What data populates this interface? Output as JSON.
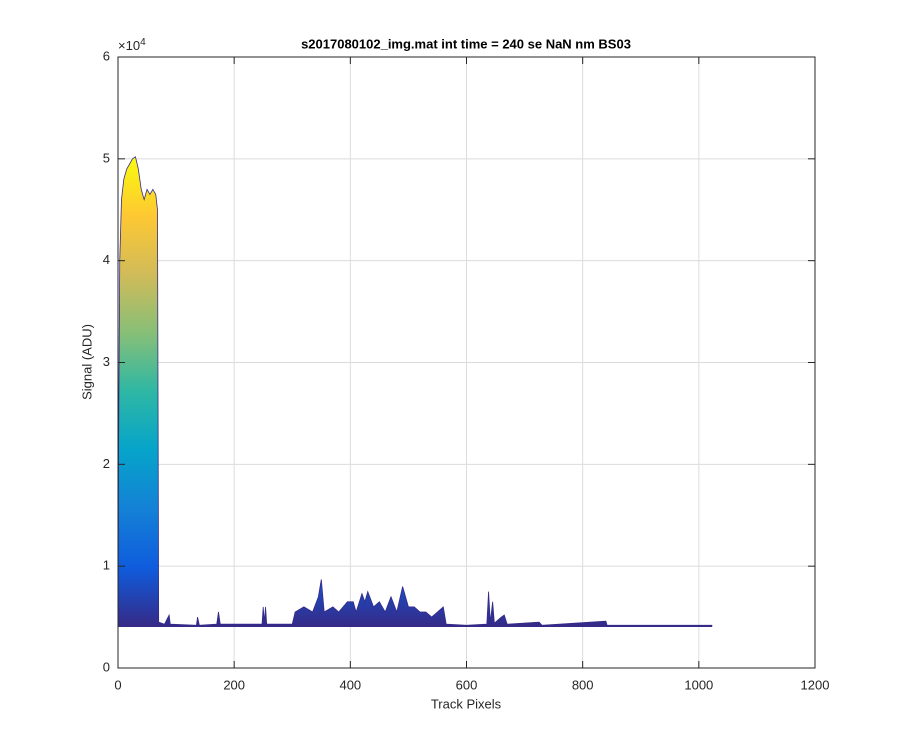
{
  "chart_data": {
    "type": "area",
    "title": "s2017080102_img.mat int time = 240 se  NaN nm BS03",
    "x_label": "Track Pixels",
    "y_label": "Signal (ADU)",
    "y_multiplier": {
      "base": "×10",
      "exponent": "4"
    },
    "x": [
      0,
      1,
      3,
      6,
      10,
      15,
      20,
      25,
      30,
      35,
      40,
      45,
      50,
      55,
      60,
      65,
      68,
      70,
      80,
      88,
      90,
      135,
      137,
      140,
      170,
      173,
      176,
      248,
      250,
      252,
      254,
      256,
      300,
      305,
      320,
      335,
      345,
      350,
      355,
      370,
      380,
      395,
      405,
      410,
      420,
      425,
      430,
      440,
      450,
      460,
      470,
      480,
      490,
      500,
      510,
      520,
      530,
      540,
      550,
      560,
      565,
      600,
      635,
      638,
      641,
      645,
      648,
      660,
      665,
      670,
      725,
      730,
      840,
      842,
      1023
    ],
    "values": [
      4200,
      22000,
      40000,
      46000,
      48000,
      49000,
      49500,
      50000,
      50200,
      49000,
      47000,
      46000,
      47000,
      46500,
      47000,
      46500,
      45000,
      4500,
      4300,
      5200,
      4300,
      4200,
      5000,
      4200,
      4300,
      5500,
      4300,
      4300,
      6000,
      4500,
      6000,
      4300,
      4300,
      5500,
      6000,
      5500,
      7000,
      8700,
      5500,
      6000,
      5500,
      6500,
      6500,
      5500,
      7300,
      6500,
      7500,
      6000,
      6500,
      5500,
      7000,
      5500,
      8000,
      6000,
      6000,
      5500,
      5500,
      5000,
      5500,
      6000,
      4300,
      4200,
      4300,
      7500,
      4500,
      6500,
      4400,
      5000,
      5200,
      4300,
      4500,
      4200,
      4600,
      4200,
      4200
    ],
    "floor": 4100,
    "line_color": "#352a87",
    "colormap": [
      "#352a87",
      "#0f5cdd",
      "#1481d6",
      "#06a4ca",
      "#2eb7a4",
      "#87bf77",
      "#d1bb59",
      "#fec832",
      "#f9fb0e"
    ],
    "xlim": [
      0,
      1200
    ],
    "xticks": [
      0,
      200,
      400,
      600,
      800,
      1000,
      1200
    ],
    "ylim": [
      0,
      60000
    ],
    "yticks": [
      {
        "value": 0,
        "label": "0"
      },
      {
        "value": 10000,
        "label": "1"
      },
      {
        "value": 20000,
        "label": "2"
      },
      {
        "value": 30000,
        "label": "3"
      },
      {
        "value": 40000,
        "label": "4"
      },
      {
        "value": 50000,
        "label": "5"
      },
      {
        "value": 60000,
        "label": "6"
      }
    ],
    "grid": true
  }
}
